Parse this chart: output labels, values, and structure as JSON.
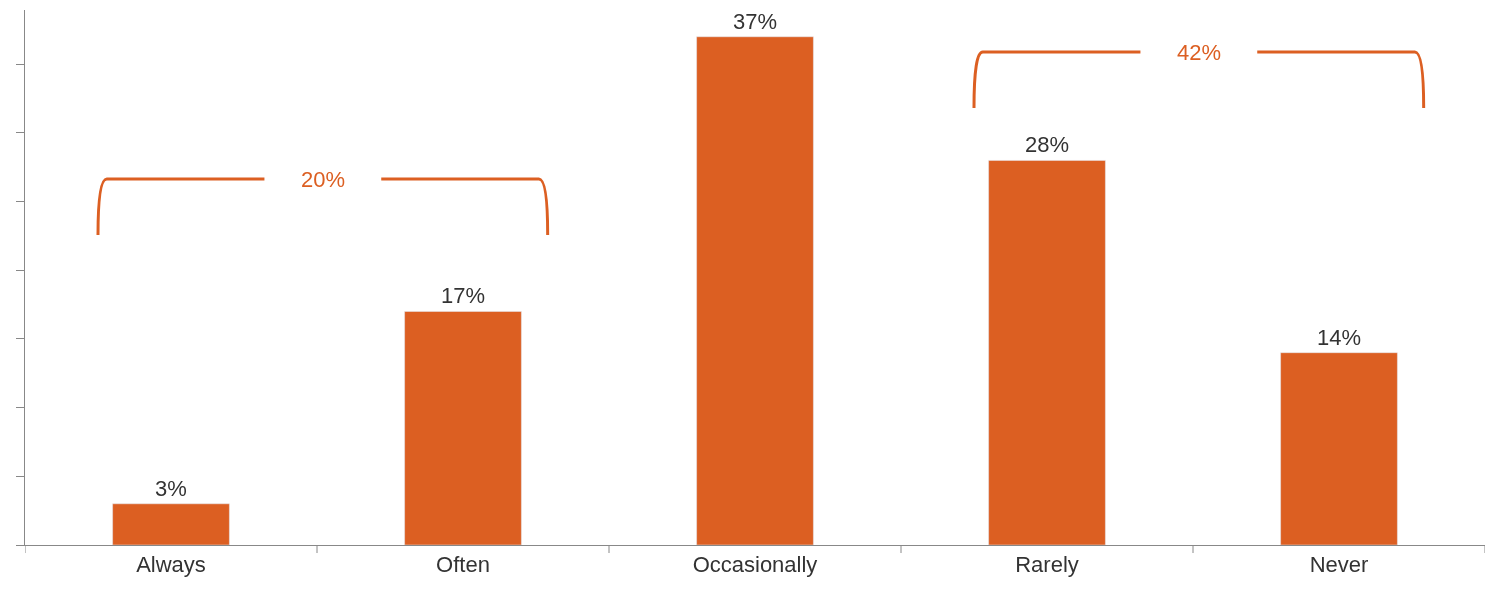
{
  "chart_data": {
    "type": "bar",
    "categories": [
      "Always",
      "Often",
      "Occasionally",
      "Rarely",
      "Never"
    ],
    "values": [
      3,
      17,
      37,
      28,
      14
    ],
    "value_labels": [
      "3%",
      "17%",
      "37%",
      "28%",
      "14%"
    ],
    "color": "#dc5f22",
    "relative": false,
    "tick_labels": "x",
    "annotations": [
      "20%",
      "42%"
    ]
  }
}
